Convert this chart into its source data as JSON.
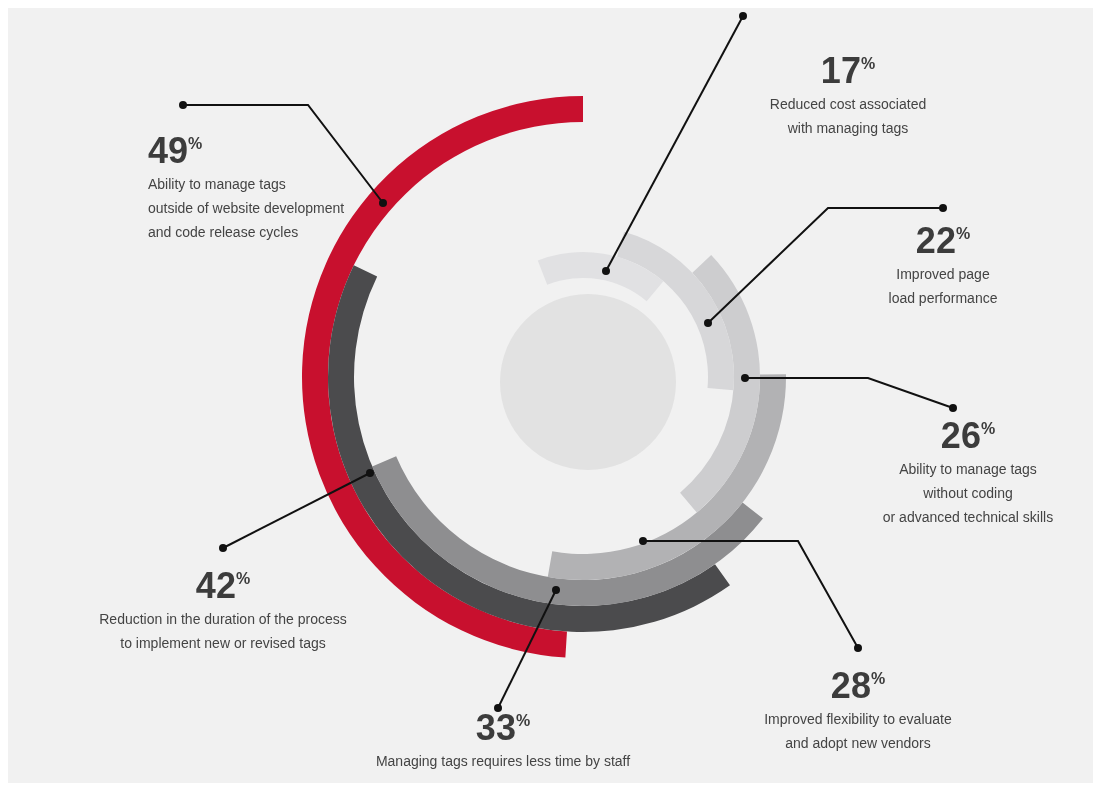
{
  "chart_data": {
    "type": "other",
    "categories": [
      "Ability to manage tags\noutside of website development\nand code release cycles",
      "Reduction in the duration of the process\nto implement new or revised tags",
      "Managing tags requires less time by staff",
      "Improved flexibility to evaluate\nand adopt new vendors",
      "Ability to manage tags\nwithout coding\nor advanced technical skills",
      "Improved page\nload performance",
      "Reduced cost associated\nwith managing tags"
    ],
    "values": [
      49,
      42,
      33,
      28,
      26,
      22,
      17
    ],
    "value_labels": [
      "49$^{%}$",
      "42$^{%}$",
      "33$^{%}$",
      "28$^{%}$",
      "26$^{%}$",
      "22$^{%}$",
      "17$^{%}$"
    ],
    "colors": [
      "#c8102e",
      "#4b4b4d",
      "#8e8e90",
      "#b2b2b4",
      "#cdcdcf",
      "#d7d7d9",
      "#e1e1e3"
    ]
  }
}
